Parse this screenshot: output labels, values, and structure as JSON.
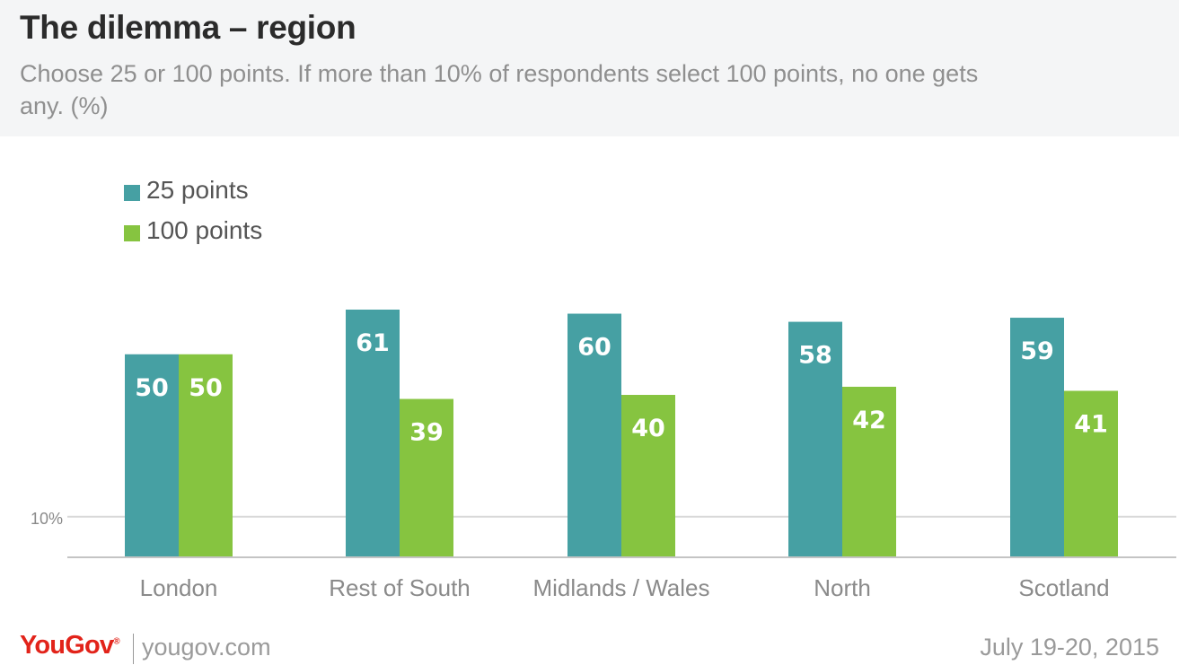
{
  "title": "The dilemma – region",
  "subtitle": "Choose 25 or 100 points. If more than 10% of respondents select 100 points, no one gets any. (%)",
  "footer": {
    "logo": "YouGov",
    "url": "yougov.com",
    "date": "July 19-20, 2015"
  },
  "colors": {
    "series_25": "#46a0a3",
    "series_100": "#86c440",
    "reference_line": "#d9d9d9",
    "axis": "#c4c4c4"
  },
  "chart_data": {
    "type": "bar",
    "categories": [
      "London",
      "Rest of South",
      "Midlands / Wales",
      "North",
      "Scotland"
    ],
    "series": [
      {
        "name": "25 points",
        "values": [
          50,
          61,
          60,
          58,
          59
        ]
      },
      {
        "name": "100 points",
        "values": [
          50,
          39,
          40,
          42,
          41
        ]
      }
    ],
    "reference_line": {
      "value": 10,
      "label": "10%"
    },
    "ylim": [
      0,
      65
    ],
    "legend_position": "top-left",
    "grid": false,
    "xlabel": "",
    "ylabel": ""
  }
}
